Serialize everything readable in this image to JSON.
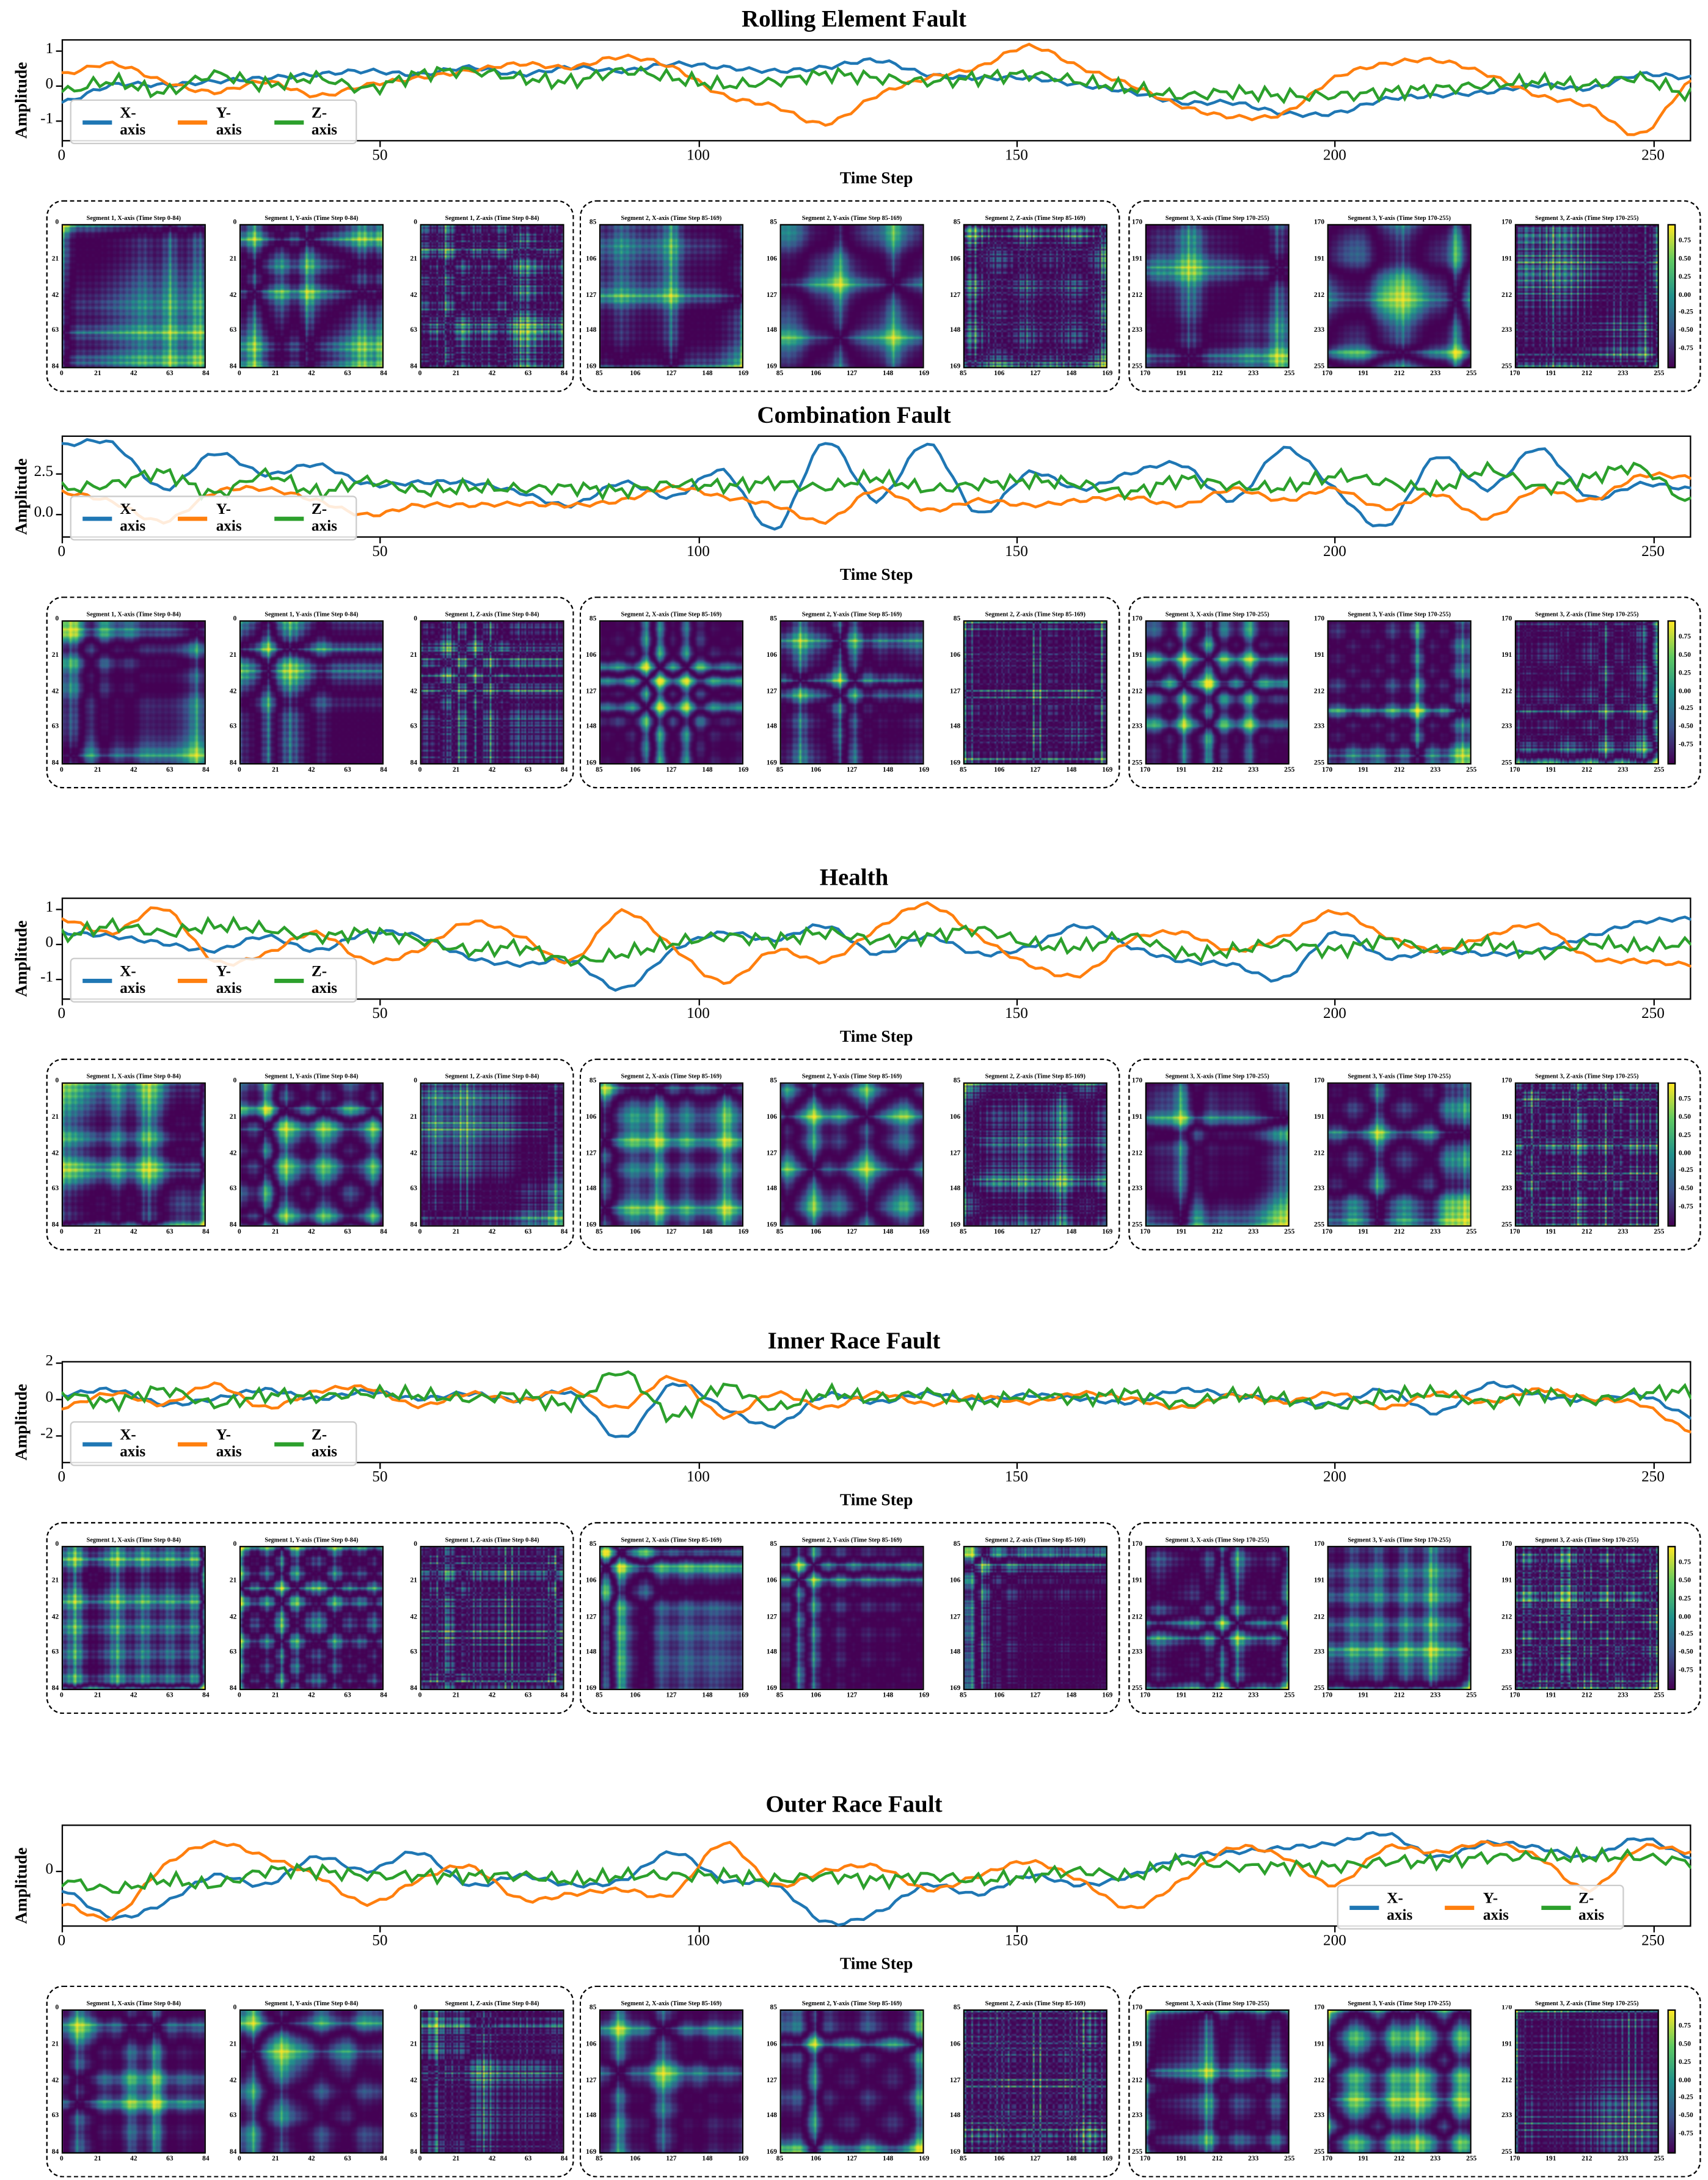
{
  "chart_data": {
    "type": "line",
    "x_label": "Time Step",
    "y_label": "Amplitude",
    "x_ticks": [
      "0",
      "50",
      "100",
      "150",
      "200",
      "250"
    ],
    "xlim": [
      0,
      256
    ],
    "sample_x": [
      0,
      8,
      16,
      24,
      32,
      40,
      48,
      56,
      64,
      72,
      80,
      88,
      96,
      104,
      112,
      120,
      128,
      136,
      144,
      152,
      160,
      168,
      176,
      184,
      192,
      200,
      208,
      216,
      224,
      232,
      240,
      248,
      256
    ],
    "series_colors": {
      "X-axis": "#1f77b4",
      "Y-axis": "#ff7f0e",
      "Z-axis": "#2ca02c"
    },
    "legend_labels": [
      "X-axis",
      "Y-axis",
      "Z-axis"
    ],
    "panels": [
      {
        "title": "Rolling Element Fault",
        "ylim": [
          -1.6,
          1.3
        ],
        "y_ticks": [
          "1",
          "0",
          "-1"
        ],
        "y_tick_values": [
          1,
          0,
          -1
        ],
        "legend_position": "lower-left",
        "series": [
          {
            "name": "X-axis",
            "values": [
              -0.5,
              0,
              0,
              0.1,
              0.2,
              0.3,
              0.4,
              0.3,
              0.5,
              0.3,
              0.5,
              0.4,
              0.6,
              0.5,
              0.4,
              0.5,
              0.7,
              0.3,
              0.2,
              0.2,
              0,
              -0.2,
              -0.5,
              -0.5,
              -0.8,
              -0.8,
              -0.4,
              -0.3,
              -0.2,
              0,
              -0.1,
              0.3,
              0.2
            ]
          },
          {
            "name": "Y-axis",
            "values": [
              0.3,
              0.6,
              0.1,
              -0.2,
              0.1,
              -0.3,
              0,
              0.2,
              0.4,
              0.6,
              0.5,
              0.8,
              0.5,
              -0.3,
              -0.6,
              -1.1,
              -0.3,
              0.2,
              0.5,
              1.1,
              0.5,
              0,
              -0.6,
              -0.9,
              -0.8,
              0.2,
              0.6,
              0.7,
              0.3,
              -0.3,
              -0.6,
              -1.4,
              0.1
            ]
          },
          {
            "name": "Z-axis",
            "values": [
              -0.2,
              0.1,
              -0.2,
              0.3,
              0,
              0.2,
              -0.1,
              0.3,
              0.4,
              0.2,
              0.1,
              0.4,
              0.2,
              0,
              0.1,
              0.3,
              0.2,
              0.1,
              0.2,
              0.3,
              0.1,
              -0.1,
              -0.3,
              -0.2,
              -0.3,
              -0.3,
              -0.2,
              -0.1,
              0,
              0.1,
              0,
              0.2,
              -0.3
            ]
          }
        ]
      },
      {
        "title": "Combination Fault",
        "ylim": [
          -1.5,
          4.8
        ],
        "y_ticks": [
          "2.5",
          "0.0"
        ],
        "y_tick_values": [
          2.5,
          0
        ],
        "legend_position": "lower-left",
        "series": [
          {
            "name": "X-axis",
            "values": [
              4.2,
              4.3,
              1.5,
              3.7,
              2.4,
              3,
              1.8,
              1.9,
              1.9,
              1.3,
              0.5,
              1.9,
              1,
              2.6,
              -1,
              4.4,
              0.8,
              4.3,
              0,
              2.5,
              1.5,
              2.5,
              3,
              0.8,
              4,
              1.5,
              -0.8,
              3.5,
              1.5,
              4,
              1,
              1.8,
              1.5
            ]
          },
          {
            "name": "Y-axis",
            "values": [
              1.3,
              0.7,
              -0.5,
              1.3,
              1.5,
              0.8,
              -0.1,
              0.5,
              0.5,
              0.6,
              0.5,
              0.8,
              1.6,
              1,
              0.5,
              -0.5,
              1.5,
              0.2,
              0.8,
              0.5,
              0.8,
              1,
              0.5,
              1.5,
              0.8,
              1.5,
              0.3,
              1.2,
              -0.3,
              1.5,
              0.8,
              2.3,
              2.2
            ]
          },
          {
            "name": "Z-axis",
            "values": [
              1.5,
              1.8,
              2.5,
              1.2,
              2.4,
              1.3,
              2,
              1.4,
              1.6,
              1.5,
              1.6,
              1.4,
              1.8,
              1.7,
              1.9,
              1.6,
              2.2,
              1.5,
              1.8,
              2,
              1.8,
              1.3,
              2.1,
              1.7,
              1.6,
              2.3,
              1.9,
              1.5,
              2.7,
              1.6,
              2.2,
              2.8,
              0.6
            ]
          }
        ]
      },
      {
        "title": "Health",
        "ylim": [
          -1.6,
          1.3
        ],
        "y_ticks": [
          "1",
          "0",
          "-1"
        ],
        "y_tick_values": [
          1,
          0,
          -1
        ],
        "legend_position": "lower-left",
        "series": [
          {
            "name": "X-axis",
            "values": [
              0.3,
              0.2,
              0,
              -0.2,
              0.2,
              -0.2,
              0.3,
              0.2,
              -0.4,
              -0.6,
              -0.5,
              -1.3,
              -0.2,
              0.3,
              0.1,
              0.5,
              -0.3,
              0.2,
              -0.3,
              -0.1,
              0.5,
              -0.1,
              -0.5,
              -0.6,
              -1,
              0.3,
              -0.4,
              -0.2,
              -0.3,
              -0.2,
              0.2,
              0.6,
              0.7
            ]
          },
          {
            "name": "Y-axis",
            "values": [
              0.7,
              0.3,
              1,
              -0.5,
              -0.3,
              0.3,
              -0.5,
              -0.2,
              0.6,
              0.2,
              -0.5,
              0.9,
              -0.1,
              -1.1,
              -0.2,
              -0.5,
              0.4,
              1.1,
              0.2,
              -0.6,
              -0.9,
              0.1,
              0.3,
              -0.2,
              0.2,
              0.9,
              0.2,
              -0.2,
              0.2,
              0.5,
              -0.4,
              -0.5,
              -0.6
            ]
          },
          {
            "name": "Z-axis",
            "values": [
              0.2,
              0.5,
              0.3,
              0.5,
              0.4,
              0.2,
              0.3,
              0.1,
              -0.2,
              -0.1,
              -0.5,
              -0.3,
              0,
              0.2,
              0.1,
              0.3,
              0.1,
              0.2,
              0.4,
              0,
              -0.1,
              0.2,
              -0.3,
              -0.2,
              0,
              -0.2,
              0.1,
              -0.2,
              0,
              -0.3,
              0,
              -0.1,
              0
            ]
          }
        ]
      },
      {
        "title": "Inner Race Fault",
        "ylim": [
          -3.6,
          2.1
        ],
        "y_ticks": [
          "2",
          "0",
          "-2"
        ],
        "y_tick_values": [
          2,
          0,
          -2
        ],
        "legend_position": "lower-left",
        "series": [
          {
            "name": "X-axis",
            "values": [
              0.2,
              0.5,
              -0.3,
              0,
              0.5,
              0,
              0.4,
              0,
              0.3,
              -0.1,
              0.3,
              -2.2,
              0.8,
              -0.5,
              -1.5,
              0.2,
              -0.2,
              0.3,
              -0.1,
              0.2,
              0,
              -0.2,
              0.5,
              0.2,
              -0.1,
              -0.3,
              0.5,
              -0.8,
              0.8,
              0.2,
              -0.1,
              0.2,
              -1
            ]
          },
          {
            "name": "Y-axis",
            "values": [
              -0.5,
              0.3,
              -0.3,
              0.8,
              -0.5,
              0.4,
              0.6,
              -0.4,
              0.3,
              -0.1,
              0.5,
              -0.5,
              1.2,
              -1,
              0.3,
              -0.5,
              0.3,
              -0.3,
              0.1,
              -0.2,
              0.3,
              0,
              -0.5,
              0.2,
              -0.2,
              0.3,
              -0.5,
              0.3,
              -0.2,
              0.5,
              0,
              -0.3,
              -1.8
            ]
          },
          {
            "name": "Z-axis",
            "values": [
              0.3,
              -0.2,
              0.5,
              -0.3,
              0.2,
              0.1,
              0.3,
              0.2,
              0,
              0.2,
              -0.3,
              1.5,
              -1,
              0.7,
              -0.5,
              0.3,
              0,
              0.3,
              -0.2,
              0.2,
              0,
              0.3,
              -0.3,
              0.2,
              0,
              -0.4,
              0.1,
              0.3,
              -0.2,
              0.3,
              -0.1,
              0.3,
              0.4
            ]
          }
        ]
      },
      {
        "title": "Outer Race Fault",
        "ylim": [
          -1.2,
          1.0
        ],
        "y_ticks": [
          "0"
        ],
        "y_tick_values": [
          0
        ],
        "legend_position": "lower-right",
        "series": [
          {
            "name": "X-axis",
            "values": [
              -0.4,
              -1,
              -0.7,
              -0.1,
              -0.3,
              0.3,
              0,
              0.4,
              -0.3,
              -0.1,
              -0.3,
              -0.2,
              0.4,
              -0.2,
              -0.3,
              -1.1,
              -0.9,
              -0.3,
              -0.5,
              -0.1,
              -0.3,
              -0.1,
              0.3,
              0.4,
              0.5,
              0.6,
              0.8,
              0.3,
              0.6,
              0.5,
              0.3,
              0.7,
              0.3
            ]
          },
          {
            "name": "Y-axis",
            "values": [
              -0.7,
              -1,
              0.1,
              0.6,
              0.3,
              -0.1,
              -0.7,
              -0.2,
              0.1,
              -0.6,
              -0.5,
              -0.4,
              -0.5,
              0.6,
              -0.3,
              0,
              0.1,
              -0.4,
              -0.1,
              0.2,
              -0.2,
              -0.8,
              -0.2,
              0.5,
              0.3,
              -0.3,
              0.5,
              0.4,
              0.6,
              0.3,
              -0.4,
              0.5,
              0.4
            ]
          },
          {
            "name": "Z-axis",
            "values": [
              -0.2,
              -0.4,
              -0.2,
              -0.3,
              0,
              0,
              -0.1,
              -0.1,
              -0.1,
              -0.1,
              -0.2,
              -0.1,
              -0.1,
              -0.1,
              -0.2,
              -0.1,
              -0.2,
              -0.1,
              -0.2,
              -0.1,
              0,
              -0.1,
              0.2,
              0.1,
              0.1,
              0.1,
              0.2,
              0.2,
              0.3,
              0.3,
              0.3,
              0.3,
              0.2
            ]
          }
        ]
      }
    ],
    "heatmaps": {
      "type": "heatmap",
      "colormap": "viridis",
      "segments": [
        {
          "label": "Segment 1",
          "range": "Time Step 0-84",
          "start": 0,
          "end": 84,
          "ticks": [
            "0",
            "21",
            "42",
            "63",
            "84"
          ]
        },
        {
          "label": "Segment 2",
          "range": "Time Step 85-169",
          "start": 85,
          "end": 169,
          "ticks": [
            "85",
            "106",
            "127",
            "148",
            "169"
          ]
        },
        {
          "label": "Segment 3",
          "range": "Time Step 170-255",
          "start": 170,
          "end": 255,
          "ticks": [
            "170",
            "191",
            "212",
            "233",
            "255"
          ]
        }
      ],
      "titles": [
        [
          "Segment 1, X-axis (Time Step 0-84)",
          "Segment 1, Y-axis (Time Step 0-84)",
          "Segment 1, Z-axis (Time Step 0-84)"
        ],
        [
          "Segment 2, X-axis (Time Step 85-169)",
          "Segment 2, Y-axis (Time Step 85-169)",
          "Segment 2, Z-axis (Time Step 85-169)"
        ],
        [
          "Segment 3, X-axis (Time Step 170-255)",
          "Segment 3, Y-axis (Time Step 170-255)",
          "Segment 3, Z-axis (Time Step 170-255)"
        ]
      ],
      "colorbar_ticks": [
        "0.75",
        "0.50",
        "0.25",
        "0.00",
        "-0.25",
        "-0.50",
        "-0.75"
      ],
      "colorbar_values": [
        0.75,
        0.5,
        0.25,
        0,
        -0.25,
        -0.5,
        -0.75
      ],
      "value_range": [
        -1,
        1
      ]
    }
  }
}
